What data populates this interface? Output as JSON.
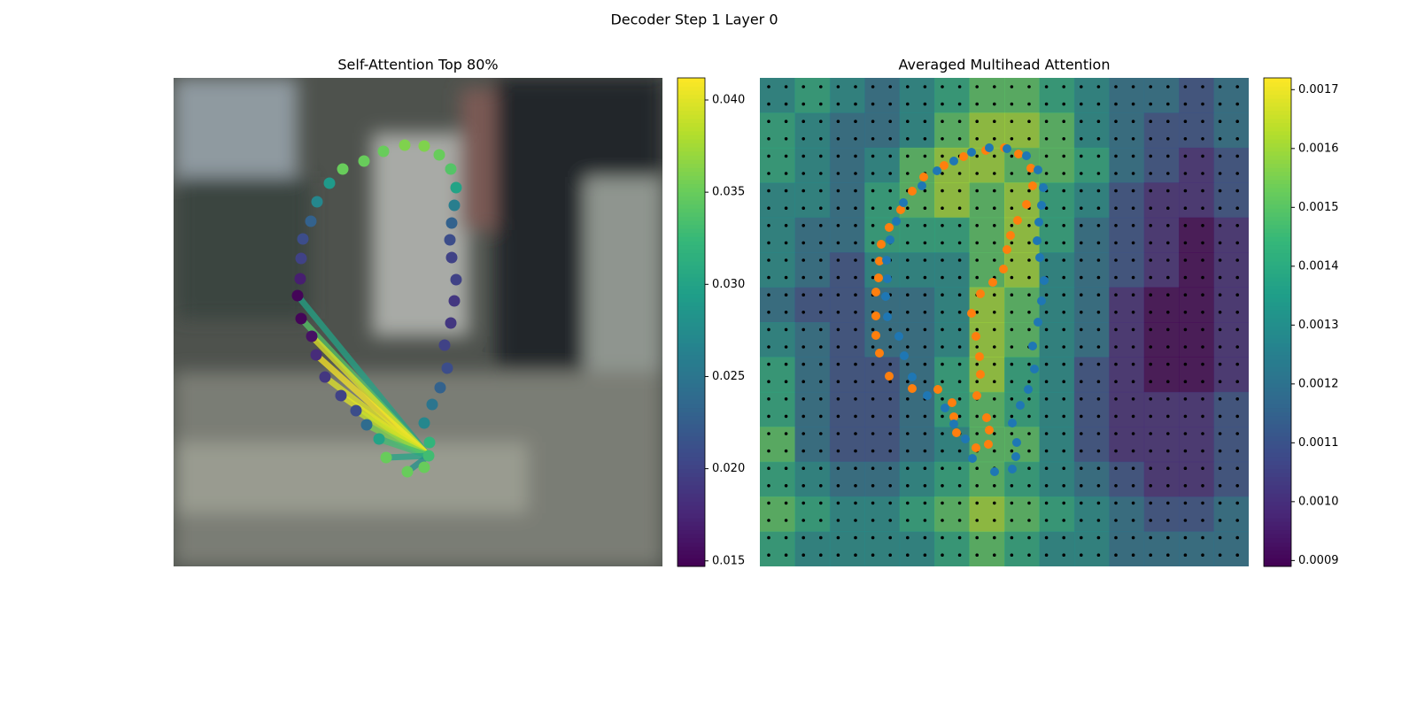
{
  "title": "Decoder Step 1 Layer 0",
  "chart_data": [
    {
      "type": "scatter",
      "title": "Self-Attention Top 80%",
      "colormap": "viridis",
      "xlim": [
        0,
        552
      ],
      "ylim": [
        552,
        0
      ],
      "x": [
        140,
        144,
        156,
        161,
        171,
        189,
        206,
        218,
        232,
        240,
        264,
        283,
        288,
        289,
        283,
        292,
        301,
        309,
        306,
        313,
        317,
        319,
        314,
        312,
        314,
        317,
        319,
        313,
        300,
        283,
        261,
        237,
        215,
        191,
        176,
        162,
        155,
        146,
        144,
        143
      ],
      "y": [
        246,
        272,
        292,
        313,
        338,
        359,
        376,
        392,
        408,
        429,
        445,
        440,
        427,
        412,
        390,
        369,
        350,
        328,
        302,
        277,
        252,
        228,
        203,
        183,
        164,
        144,
        124,
        103,
        87,
        77,
        76,
        83,
        94,
        103,
        119,
        140,
        162,
        182,
        204,
        227
      ],
      "values": [
        0.015,
        0.015,
        0.016,
        0.018,
        0.019,
        0.02,
        0.021,
        0.024,
        0.03,
        0.035,
        0.035,
        0.035,
        0.033,
        0.032,
        0.027,
        0.025,
        0.023,
        0.021,
        0.02,
        0.019,
        0.019,
        0.02,
        0.02,
        0.021,
        0.023,
        0.026,
        0.03,
        0.034,
        0.035,
        0.036,
        0.036,
        0.035,
        0.035,
        0.035,
        0.029,
        0.027,
        0.023,
        0.021,
        0.02,
        0.017
      ],
      "links": {
        "from": 12,
        "to": [
          0,
          1,
          2,
          3,
          4,
          5,
          6,
          7,
          8,
          9,
          10
        ],
        "values": [
          0.03,
          0.034,
          0.04,
          0.041,
          0.04,
          0.04,
          0.039,
          0.036,
          0.033,
          0.03,
          0.028
        ]
      },
      "clim": [
        0.0147,
        0.0412
      ],
      "cticks": [
        0.015,
        {
          "value": 0.02,
          "label": "0.020"
        },
        0.025,
        {
          "value": 0.03,
          "label": "0.030"
        },
        0.035,
        {
          "value": 0.04,
          "label": "0.040"
        }
      ]
    },
    {
      "type": "heatmap",
      "title": "Averaged Multihead Attention",
      "colormap": "viridis",
      "xlim": [
        0,
        552
      ],
      "ylim": [
        552,
        0
      ],
      "z": [
        [
          0.0013,
          0.0014,
          0.0013,
          0.0012,
          0.0013,
          0.0014,
          0.0015,
          0.0015,
          0.0014,
          0.0013,
          0.0012,
          0.0012,
          0.0011,
          0.0012
        ],
        [
          0.0014,
          0.0013,
          0.0012,
          0.0012,
          0.0013,
          0.0015,
          0.0016,
          0.0016,
          0.0015,
          0.0013,
          0.0012,
          0.0011,
          0.0011,
          0.0012
        ],
        [
          0.0014,
          0.0013,
          0.0012,
          0.0013,
          0.0015,
          0.0016,
          0.0016,
          0.0015,
          0.0015,
          0.0014,
          0.0012,
          0.0011,
          0.001,
          0.0011
        ],
        [
          0.0013,
          0.0013,
          0.0012,
          0.0014,
          0.0015,
          0.0016,
          0.0015,
          0.0016,
          0.0014,
          0.0013,
          0.0011,
          0.001,
          0.001,
          0.0011
        ],
        [
          0.0013,
          0.0012,
          0.0012,
          0.0014,
          0.0014,
          0.0014,
          0.0015,
          0.0016,
          0.0014,
          0.0012,
          0.0011,
          0.001,
          0.0009,
          0.001
        ],
        [
          0.0013,
          0.0012,
          0.0011,
          0.0013,
          0.0013,
          0.0013,
          0.0015,
          0.0016,
          0.0013,
          0.0012,
          0.0011,
          0.001,
          0.0009,
          0.001
        ],
        [
          0.0012,
          0.0011,
          0.0011,
          0.0012,
          0.0012,
          0.0013,
          0.0016,
          0.0015,
          0.0013,
          0.0012,
          0.001,
          0.0009,
          0.0009,
          0.001
        ],
        [
          0.0013,
          0.0012,
          0.0011,
          0.0012,
          0.0012,
          0.0013,
          0.0016,
          0.0015,
          0.0013,
          0.0012,
          0.001,
          0.0009,
          0.0009,
          0.001
        ],
        [
          0.0014,
          0.0012,
          0.0011,
          0.0011,
          0.0012,
          0.0014,
          0.0016,
          0.0014,
          0.0013,
          0.0011,
          0.001,
          0.0009,
          0.0009,
          0.001
        ],
        [
          0.0014,
          0.0012,
          0.0011,
          0.0011,
          0.0012,
          0.0014,
          0.0015,
          0.0014,
          0.0013,
          0.0011,
          0.001,
          0.001,
          0.001,
          0.0011
        ],
        [
          0.0015,
          0.0012,
          0.0011,
          0.0011,
          0.0012,
          0.0013,
          0.0015,
          0.0015,
          0.0013,
          0.0011,
          0.001,
          0.001,
          0.001,
          0.0011
        ],
        [
          0.0014,
          0.0013,
          0.0012,
          0.0012,
          0.0013,
          0.0014,
          0.0015,
          0.0014,
          0.0013,
          0.0012,
          0.0011,
          0.001,
          0.001,
          0.0011
        ],
        [
          0.0015,
          0.0014,
          0.0013,
          0.0013,
          0.0014,
          0.0015,
          0.0016,
          0.0015,
          0.0014,
          0.0013,
          0.0012,
          0.0011,
          0.0011,
          0.0012
        ],
        [
          0.0014,
          0.0013,
          0.0013,
          0.0013,
          0.0013,
          0.0014,
          0.0015,
          0.0014,
          0.0013,
          0.0013,
          0.0012,
          0.0012,
          0.0012,
          0.0012
        ]
      ],
      "series": [
        {
          "color": "#ff7f0e",
          "x": [
            276,
            292,
            306,
            308,
            301,
            291,
            283,
            279,
            275,
            263,
            249,
            239,
            244,
            248,
            249,
            245,
            256,
            259,
            258,
            244,
            222,
            219,
            217,
            201,
            172,
            146,
            135,
            131,
            131,
            131,
            134,
            135,
            137,
            146,
            159,
            172,
            185,
            208,
            230,
            255
          ],
          "y": [
            79,
            86,
            102,
            122,
            143,
            161,
            178,
            194,
            216,
            231,
            244,
            266,
            292,
            315,
            335,
            359,
            384,
            398,
            414,
            418,
            401,
            383,
            367,
            352,
            351,
            337,
            311,
            291,
            269,
            242,
            226,
            207,
            188,
            169,
            149,
            128,
            112,
            99,
            89,
            82
          ]
        },
        {
          "color": "#1f77b4",
          "x": [
            259,
            239,
            219,
            200,
            183,
            162,
            154,
            147,
            143,
            144,
            142,
            144,
            157,
            163,
            172,
            189,
            209,
            219,
            232,
            240,
            265,
            285,
            289,
            290,
            285,
            294,
            303,
            310,
            308,
            314,
            318,
            321,
            316,
            313,
            315,
            318,
            320,
            314,
            301,
            279
          ],
          "y": [
            79,
            84,
            94,
            105,
            122,
            141,
            162,
            183,
            206,
            227,
            247,
            270,
            292,
            314,
            338,
            359,
            373,
            391,
            408,
            430,
            445,
            442,
            428,
            412,
            390,
            370,
            352,
            329,
            303,
            276,
            252,
            229,
            203,
            184,
            163,
            144,
            124,
            104,
            88,
            80
          ]
        }
      ],
      "clim": [
        0.00089,
        0.00172
      ],
      "cticks": [
        0.0009,
        {
          "value": 0.001,
          "label": "0.0010"
        },
        0.0011,
        0.0012,
        0.0013,
        0.0014,
        0.0015,
        0.0016,
        0.0017
      ]
    }
  ]
}
